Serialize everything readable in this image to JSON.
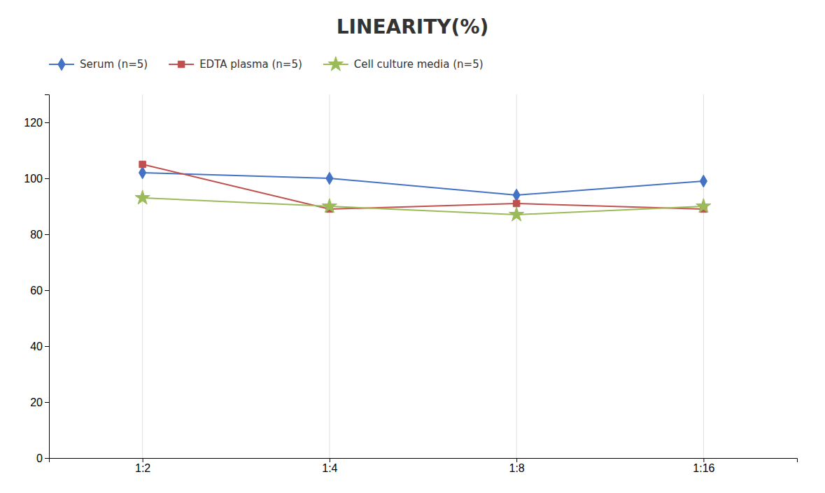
{
  "chart_data": {
    "type": "line",
    "title": "LINEARITY(%)",
    "categories": [
      "1:2",
      "1:4",
      "1:8",
      "1:16"
    ],
    "series": [
      {
        "name": "Serum (n=5)",
        "color": "#4472C4",
        "marker": "diamond",
        "values": [
          102,
          100,
          94,
          99
        ]
      },
      {
        "name": "EDTA plasma (n=5)",
        "color": "#C0504D",
        "marker": "square",
        "values": [
          105,
          89,
          91,
          89
        ]
      },
      {
        "name": "Cell culture media (n=5)",
        "color": "#9BBB59",
        "marker": "star",
        "values": [
          93,
          90,
          87,
          90
        ]
      }
    ],
    "ylim": [
      0,
      130
    ],
    "yticks": [
      0,
      20,
      40,
      60,
      80,
      100,
      120
    ],
    "grid": true,
    "legend": "top-left"
  }
}
